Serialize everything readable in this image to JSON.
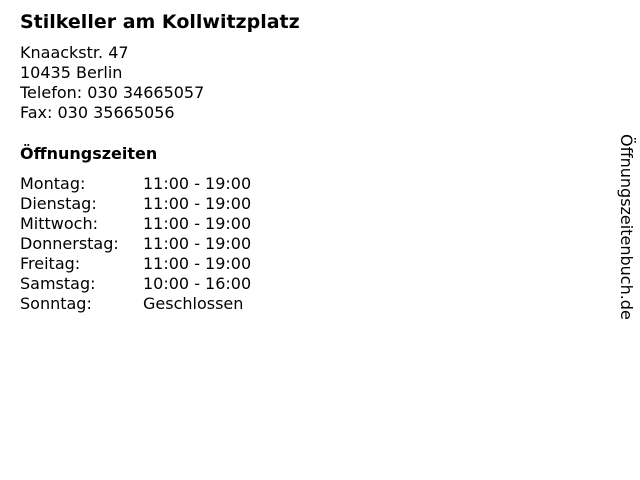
{
  "business": {
    "name": "Stilkeller am Kollwitzplatz",
    "street": "Knaackstr. 47",
    "city": "10435 Berlin",
    "phone": "Telefon: 030 34665057",
    "fax": "Fax: 030 35665056"
  },
  "hours": {
    "heading": "Öffnungszeiten",
    "rows": [
      {
        "day": "Montag:",
        "time": "11:00 - 19:00"
      },
      {
        "day": "Dienstag:",
        "time": "11:00 - 19:00"
      },
      {
        "day": "Mittwoch:",
        "time": "11:00 - 19:00"
      },
      {
        "day": "Donnerstag:",
        "time": "11:00 - 19:00"
      },
      {
        "day": "Freitag:",
        "time": "11:00 - 19:00"
      },
      {
        "day": "Samstag:",
        "time": "10:00 - 16:00"
      },
      {
        "day": "Sonntag:",
        "time": "Geschlossen"
      }
    ]
  },
  "watermark": "Öffnungszeitenbuch.de"
}
